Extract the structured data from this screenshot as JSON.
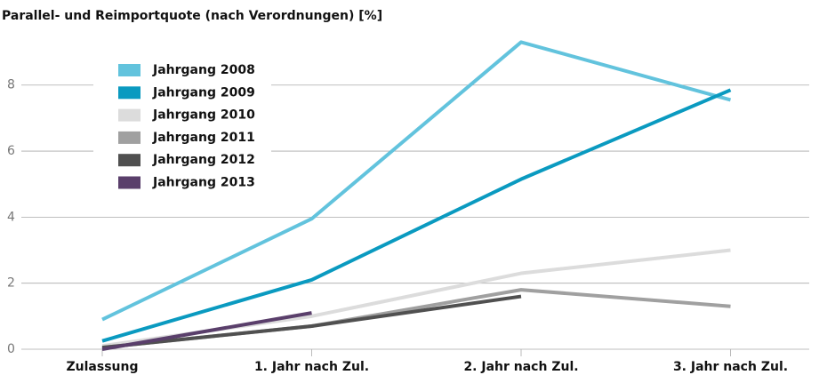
{
  "chart_data": {
    "type": "line",
    "title": "Parallel- und Reimportquote (nach Verordnungen) [%]",
    "categories": [
      "Zulassung",
      "1. Jahr nach Zul.",
      "2. Jahr nach Zul.",
      "3. Jahr nach Zul."
    ],
    "series": [
      {
        "name": "Jahrgang 2008",
        "color": "#62c3dd",
        "values": [
          0.9,
          3.95,
          9.3,
          7.55
        ]
      },
      {
        "name": "Jahrgang 2009",
        "color": "#0a9ac0",
        "values": [
          0.25,
          2.1,
          5.15,
          7.85
        ]
      },
      {
        "name": "Jahrgang 2010",
        "color": "#dcdcdc",
        "values": [
          0.1,
          1.0,
          2.3,
          3.0
        ]
      },
      {
        "name": "Jahrgang 2011",
        "color": "#a0a0a0",
        "values": [
          0.05,
          0.7,
          1.8,
          1.3
        ]
      },
      {
        "name": "Jahrgang 2012",
        "color": "#505050",
        "values": [
          0.05,
          0.7,
          1.6,
          null
        ]
      },
      {
        "name": "Jahrgang 2013",
        "color": "#5a3f6b",
        "values": [
          0,
          1.1,
          null,
          null
        ]
      }
    ],
    "ylim": [
      0,
      9.5
    ],
    "yticks": [
      0,
      2,
      4,
      6,
      8
    ],
    "grid": true,
    "legend": "upper left"
  }
}
